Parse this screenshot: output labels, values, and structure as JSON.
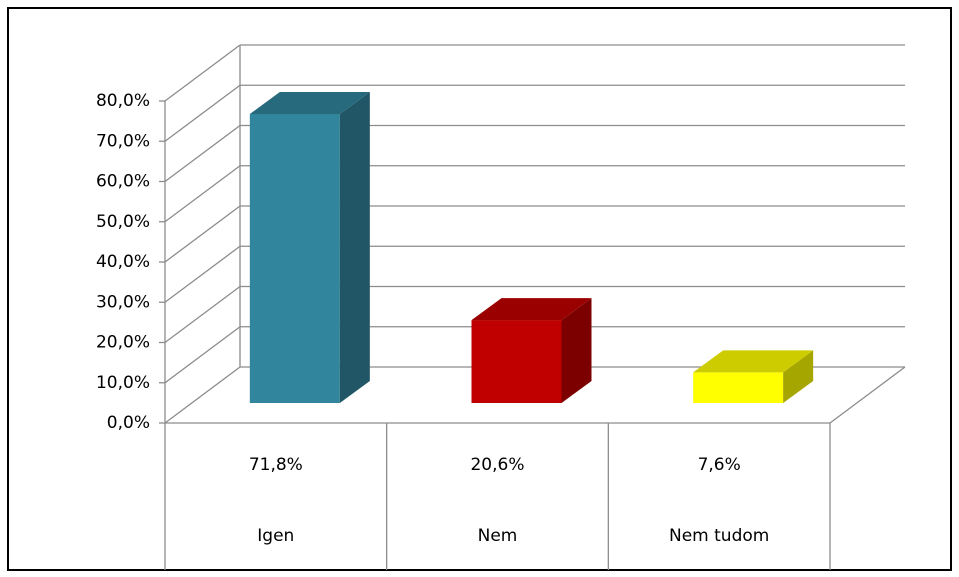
{
  "chart_data": {
    "type": "bar3d",
    "categories": [
      "Igen",
      "Nem",
      "Nem tudom"
    ],
    "values": [
      71.8,
      20.6,
      7.6
    ],
    "value_labels": [
      "71,8%",
      "20,6%",
      "7,6%"
    ],
    "colors": [
      "#31859c",
      "#c00000",
      "#ffff00"
    ],
    "ylim": [
      0,
      80
    ],
    "yticks": [
      {
        "value": 0,
        "label": "0,0%"
      },
      {
        "value": 10,
        "label": "10,0%"
      },
      {
        "value": 20,
        "label": "20,0%"
      },
      {
        "value": 30,
        "label": "30,0%"
      },
      {
        "value": 40,
        "label": "40,0%"
      },
      {
        "value": 50,
        "label": "50,0%"
      },
      {
        "value": 60,
        "label": "60,0%"
      },
      {
        "value": 70,
        "label": "70,0%"
      },
      {
        "value": 80,
        "label": "80,0%"
      }
    ],
    "grid": true
  }
}
